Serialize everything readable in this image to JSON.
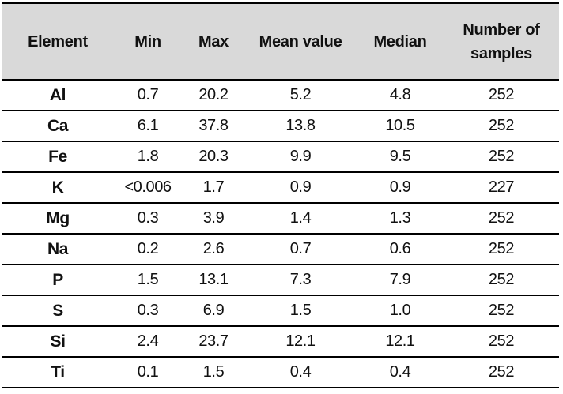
{
  "table": {
    "headers": [
      "Element",
      "Min",
      "Max",
      "Mean value",
      "Median",
      "Number of\nsamples"
    ],
    "rows": [
      [
        "Al",
        "0.7",
        "20.2",
        "5.2",
        "4.8",
        "252"
      ],
      [
        "Ca",
        "6.1",
        "37.8",
        "13.8",
        "10.5",
        "252"
      ],
      [
        "Fe",
        "1.8",
        "20.3",
        "9.9",
        "9.5",
        "252"
      ],
      [
        "K",
        "<0.006",
        "1.7",
        "0.9",
        "0.9",
        "227"
      ],
      [
        "Mg",
        "0.3",
        "3.9",
        "1.4",
        "1.3",
        "252"
      ],
      [
        "Na",
        "0.2",
        "2.6",
        "0.7",
        "0.6",
        "252"
      ],
      [
        "P",
        "1.5",
        "13.1",
        "7.3",
        "7.9",
        "252"
      ],
      [
        "S",
        "0.3",
        "6.9",
        "1.5",
        "1.0",
        "252"
      ],
      [
        "Si",
        "2.4",
        "23.7",
        "12.1",
        "12.1",
        "252"
      ],
      [
        "Ti",
        "0.1",
        "1.5",
        "0.4",
        "0.4",
        "252"
      ]
    ]
  },
  "colors": {
    "header_background": "#d9d9d9",
    "rule_color": "#000000"
  }
}
